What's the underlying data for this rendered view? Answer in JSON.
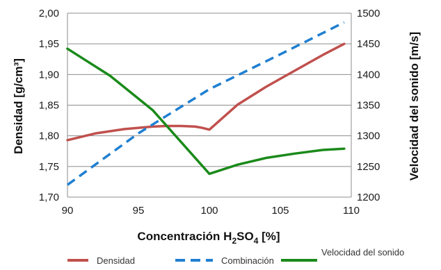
{
  "chart_data": {
    "type": "line",
    "title": "",
    "xlabel_main": "Concentración H",
    "xlabel_sub1": "2",
    "xlabel_mid": "SO",
    "xlabel_sub2": "4",
    "xlabel_end": " [%]",
    "ylabel_left": "Densidad [g/cm³]",
    "ylabel_right": "Velocidad del sonido [m/s]",
    "xlim": [
      90,
      110
    ],
    "ylim_left": [
      1.7,
      2.0
    ],
    "ylim_right": [
      1200,
      1500
    ],
    "xticks": [
      "90",
      "95",
      "100",
      "105",
      "110"
    ],
    "yticks_left": [
      "1,70",
      "1,75",
      "1,80",
      "1,85",
      "1,90",
      "1,95",
      "2,00"
    ],
    "yticks_right": [
      "1200",
      "1250",
      "1300",
      "1350",
      "1400",
      "1450",
      "1500"
    ],
    "grid": "horizontal",
    "legend_position": "bottom",
    "series": [
      {
        "name": "Densidad",
        "axis": "left",
        "color": "#c0504d",
        "style": "solid",
        "x": [
          90,
          92,
          94,
          96,
          97,
          98,
          99,
          99.5,
          100,
          102,
          104,
          106,
          108,
          109.5
        ],
        "y": [
          1.793,
          1.804,
          1.811,
          1.815,
          1.816,
          1.816,
          1.815,
          1.813,
          1.81,
          1.851,
          1.88,
          1.906,
          1.932,
          1.95
        ]
      },
      {
        "name": "Combinación",
        "axis": "left",
        "color": "#1f7fd1",
        "style": "dashed",
        "x": [
          90,
          95,
          100,
          105,
          109.5
        ],
        "y": [
          1.72,
          1.804,
          1.876,
          1.933,
          1.985
        ]
      },
      {
        "name": "Velocidad del sonido",
        "axis": "right",
        "color": "#1a8a1a",
        "style": "solid",
        "x": [
          90,
          93,
          96,
          100,
          102,
          104,
          106,
          108,
          109.5
        ],
        "y": [
          1442,
          1398,
          1342,
          1238,
          1253,
          1264,
          1271,
          1277,
          1279
        ]
      }
    ]
  }
}
